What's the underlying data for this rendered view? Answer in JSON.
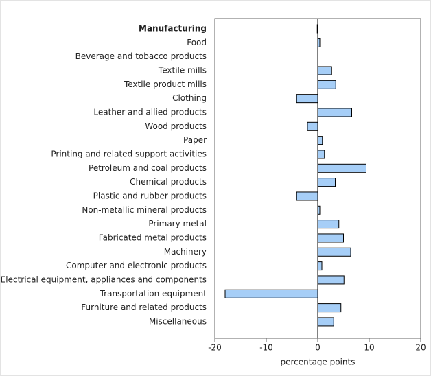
{
  "chart_data": {
    "type": "bar",
    "orientation": "horizontal",
    "xlabel": "percentage points",
    "categories": [
      "Manufacturing",
      "Food",
      "Beverage and tobacco products",
      "Textile mills",
      "Textile product mills",
      "Clothing",
      "Leather and allied products",
      "Wood products",
      "Paper",
      "Printing and related support activities",
      "Petroleum and coal products",
      "Chemical products",
      "Plastic and rubber products",
      "Non-metallic mineral products",
      "Primary metal",
      "Fabricated metal products",
      "Machinery",
      "Computer and electronic products",
      "Electrical equipment, appliances and components",
      "Transportation equipment",
      "Furniture and related products",
      "Miscellaneous"
    ],
    "values": [
      -0.1,
      0.4,
      0,
      2.7,
      3.5,
      -4.1,
      6.6,
      -2.0,
      0.9,
      1.3,
      9.4,
      3.4,
      -4.1,
      0.4,
      4.1,
      5.0,
      6.4,
      0.8,
      5.1,
      -18.0,
      4.5,
      3.1
    ],
    "color": "#a6cef7",
    "xlim": [
      -20,
      20
    ],
    "xticks": [
      -20,
      -10,
      0,
      10,
      20
    ]
  }
}
